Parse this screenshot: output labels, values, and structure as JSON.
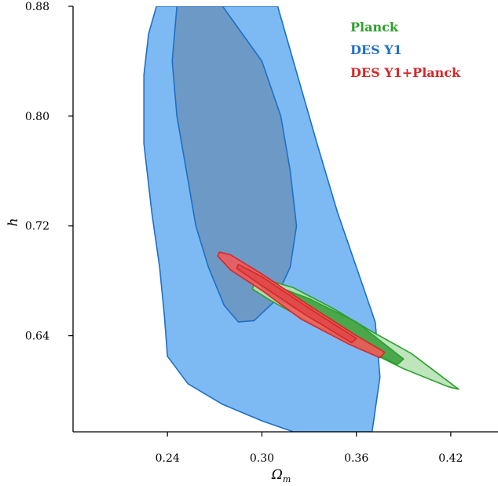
{
  "chart_data": {
    "type": "contour",
    "title": "",
    "xlabel": "Ω",
    "xlabel_sub": "m",
    "ylabel": "h",
    "xlim": [
      0.18,
      0.45
    ],
    "ylim": [
      0.57,
      0.88
    ],
    "xticks": [
      0.24,
      0.3,
      0.36,
      0.42
    ],
    "yticks": [
      0.64,
      0.72,
      0.8,
      0.88
    ],
    "xtick_labels": [
      "0.24",
      "0.30",
      "0.36",
      "0.42"
    ],
    "ytick_labels": [
      "0.64",
      "0.72",
      "0.80",
      "0.88"
    ],
    "grid": false,
    "legend": {
      "placement": "top-right"
    },
    "series": [
      {
        "name": "Planck",
        "color": "#2ca02c",
        "fill_outer": "#b7e2b5",
        "fill_inner": "#3fa13f",
        "levels": {
          "outer": [
            [
              0.296,
              0.683
            ],
            [
              0.32,
              0.675
            ],
            [
              0.345,
              0.66
            ],
            [
              0.37,
              0.643
            ],
            [
              0.395,
              0.627
            ],
            [
              0.425,
              0.601
            ],
            [
              0.418,
              0.603
            ],
            [
              0.39,
              0.616
            ],
            [
              0.36,
              0.633
            ],
            [
              0.33,
              0.65
            ],
            [
              0.305,
              0.666
            ],
            [
              0.294,
              0.674
            ]
          ],
          "inner": [
            [
              0.3,
              0.68
            ],
            [
              0.33,
              0.667
            ],
            [
              0.36,
              0.65
            ],
            [
              0.39,
              0.623
            ],
            [
              0.386,
              0.619
            ],
            [
              0.355,
              0.636
            ],
            [
              0.325,
              0.657
            ],
            [
              0.3,
              0.673
            ]
          ]
        }
      },
      {
        "name": "DES Y1",
        "color": "#1f6fc4",
        "fill_outer": "#6fb2f3",
        "fill_inner": "#6b97c2",
        "levels": {
          "outer": [
            [
              0.233,
              0.88
            ],
            [
              0.31,
              0.88
            ],
            [
              0.32,
              0.84
            ],
            [
              0.335,
              0.78
            ],
            [
              0.348,
              0.73
            ],
            [
              0.36,
              0.69
            ],
            [
              0.372,
              0.65
            ],
            [
              0.375,
              0.61
            ],
            [
              0.37,
              0.57
            ],
            [
              0.34,
              0.57
            ],
            [
              0.32,
              0.57
            ],
            [
              0.3,
              0.578
            ],
            [
              0.275,
              0.59
            ],
            [
              0.253,
              0.605
            ],
            [
              0.24,
              0.625
            ],
            [
              0.238,
              0.655
            ],
            [
              0.235,
              0.69
            ],
            [
              0.23,
              0.73
            ],
            [
              0.225,
              0.78
            ],
            [
              0.225,
              0.83
            ],
            [
              0.228,
              0.86
            ]
          ],
          "inner": [
            [
              0.246,
              0.88
            ],
            [
              0.275,
              0.88
            ],
            [
              0.3,
              0.84
            ],
            [
              0.312,
              0.8
            ],
            [
              0.318,
              0.76
            ],
            [
              0.322,
              0.72
            ],
            [
              0.318,
              0.69
            ],
            [
              0.308,
              0.665
            ],
            [
              0.295,
              0.651
            ],
            [
              0.285,
              0.65
            ],
            [
              0.276,
              0.662
            ],
            [
              0.266,
              0.69
            ],
            [
              0.258,
              0.72
            ],
            [
              0.252,
              0.76
            ],
            [
              0.246,
              0.8
            ],
            [
              0.243,
              0.84
            ]
          ]
        }
      },
      {
        "name": "DES Y1+Planck",
        "color": "#d62728",
        "fill_outer": "#ef5b5b",
        "fill_inner": "#e14848",
        "levels": {
          "outer": [
            [
              0.273,
              0.701
            ],
            [
              0.28,
              0.699
            ],
            [
              0.3,
              0.685
            ],
            [
              0.33,
              0.662
            ],
            [
              0.36,
              0.64
            ],
            [
              0.378,
              0.628
            ],
            [
              0.375,
              0.624
            ],
            [
              0.355,
              0.634
            ],
            [
              0.325,
              0.652
            ],
            [
              0.3,
              0.673
            ],
            [
              0.28,
              0.688
            ],
            [
              0.272,
              0.698
            ]
          ],
          "inner": [
            [
              0.285,
              0.692
            ],
            [
              0.3,
              0.683
            ],
            [
              0.33,
              0.66
            ],
            [
              0.36,
              0.638
            ],
            [
              0.357,
              0.635
            ],
            [
              0.328,
              0.655
            ],
            [
              0.298,
              0.678
            ],
            [
              0.284,
              0.689
            ]
          ]
        }
      }
    ]
  }
}
